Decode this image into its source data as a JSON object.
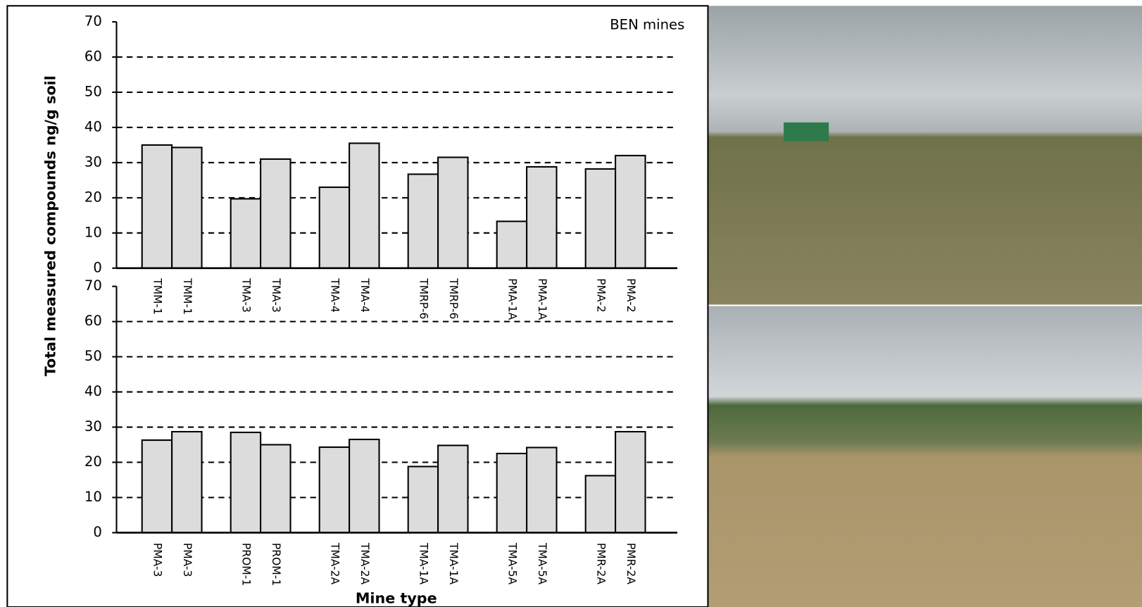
{
  "chart_data": [
    {
      "type": "bar",
      "annotation": "BEN mines",
      "y_label": "Total measured compounds ng/g soil",
      "categories": [
        "TMM-1",
        "TMM-1",
        "TMA-3",
        "TMA-3",
        "TMA-4",
        "TMA-4",
        "TMRP-6",
        "TMRP-6",
        "PMA-1A",
        "PMA-1A",
        "PMA-2",
        "PMA-2"
      ],
      "values": [
        35,
        34.3,
        19.7,
        31,
        23,
        35.5,
        26.7,
        31.5,
        13.3,
        28.8,
        28.2,
        32
      ],
      "color": "#dcdcdc",
      "ylim": [
        0,
        70
      ],
      "yticks": [
        0,
        10,
        20,
        30,
        40,
        50,
        60,
        70
      ],
      "grid": true
    },
    {
      "type": "bar",
      "x_label": "Mine type",
      "categories": [
        "PMA-3",
        "PMA-3",
        "PROM-1",
        "PROM-1",
        "TMA-2A",
        "TMA-2A",
        "TMA-1A",
        "TMA-1A",
        "TMA-5A",
        "TMA-5A",
        "PMR-2A",
        "PMR-2A"
      ],
      "values": [
        26.3,
        28.7,
        28.5,
        25,
        24.3,
        26.5,
        18.8,
        24.8,
        22.5,
        24.2,
        16.2,
        28.7
      ],
      "color": "#dcdcdc",
      "ylim": [
        0,
        70
      ],
      "yticks": [
        0,
        10,
        20,
        30,
        40,
        50,
        60,
        70
      ],
      "grid": true
    }
  ]
}
